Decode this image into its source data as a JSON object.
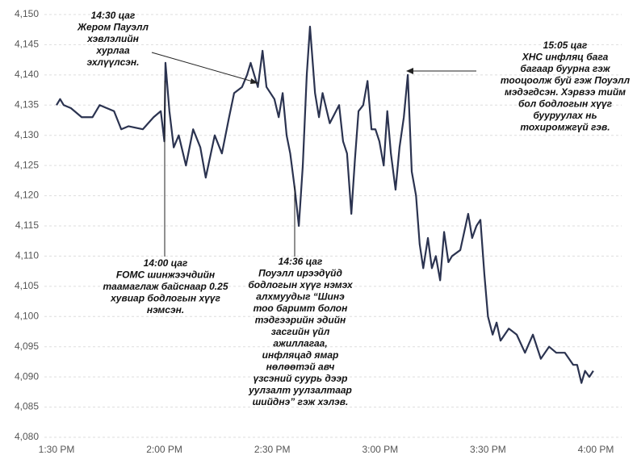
{
  "chart_data": {
    "type": "line",
    "series": [
      {
        "color": "#2b3350",
        "x": [
          0,
          1,
          2,
          4,
          7,
          10,
          12,
          16,
          18,
          20,
          24,
          27,
          29,
          30,
          30.3,
          31.4,
          32.6,
          34,
          36,
          38,
          40,
          41.5,
          44,
          46,
          48,
          49.4,
          51.6,
          53,
          54,
          56,
          57.3,
          58.4,
          59.5,
          60.6,
          61.8,
          62.9,
          64,
          65,
          66.3,
          67.4,
          68.5,
          69.6,
          70.5,
          71.9,
          73,
          74,
          76,
          78.6,
          79.7,
          80.8,
          82,
          83,
          84,
          85.3,
          86.5,
          87.6,
          88.7,
          89.8,
          91,
          92,
          93,
          94.3,
          95.4,
          96.6,
          97.7,
          98.8,
          100,
          101,
          102,
          103.3,
          104.4,
          105.5,
          106.7,
          107.8,
          109,
          110,
          112.3,
          113.4,
          114.5,
          115.6,
          116.8,
          117.9,
          119,
          120,
          121.3,
          122.4,
          123.5,
          125.8,
          128,
          130.3,
          132.5,
          134.7,
          137,
          139,
          141.4,
          143.7,
          144.8,
          146,
          147,
          148.2,
          149.3
        ],
        "values": [
          4135,
          4136,
          4135,
          4134.5,
          4133,
          4133,
          4135,
          4134,
          4131,
          4131.5,
          4131,
          4133,
          4134,
          4129,
          4142,
          4134,
          4128,
          4130,
          4125,
          4131,
          4128,
          4123,
          4130,
          4127,
          4133,
          4137,
          4138,
          4140,
          4142,
          4138,
          4144,
          4138,
          4137,
          4136,
          4133,
          4137,
          4130,
          4127,
          4121,
          4115,
          4125,
          4140,
          4148,
          4137,
          4133,
          4137,
          4132,
          4135,
          4129,
          4127,
          4117,
          4126,
          4134,
          4135,
          4139,
          4131,
          4131,
          4129,
          4125,
          4134,
          4127,
          4121,
          4128,
          4133,
          4140,
          4124,
          4120,
          4112,
          4108,
          4113,
          4108,
          4110,
          4106,
          4114,
          4109,
          4110,
          4111,
          4114,
          4117,
          4113,
          4115,
          4116,
          4107,
          4100,
          4097,
          4099,
          4096,
          4098,
          4097,
          4094,
          4097,
          4093,
          4095,
          4094,
          4094,
          4092,
          4092,
          4089,
          4091,
          4090,
          4091
        ]
      }
    ],
    "xlim": [
      0,
      150
    ],
    "xticks": [
      {
        "value": 0,
        "label": "1:30 PM"
      },
      {
        "value": 30,
        "label": "2:00 PM"
      },
      {
        "value": 60,
        "label": "2:30 PM"
      },
      {
        "value": 90,
        "label": "3:00 PM"
      },
      {
        "value": 120,
        "label": "3:30 PM"
      },
      {
        "value": 150,
        "label": "4:00 PM"
      }
    ],
    "ylim": [
      4080,
      4150
    ],
    "yticks": [
      {
        "value": 4080,
        "label": "4,080"
      },
      {
        "value": 4085,
        "label": "4,085"
      },
      {
        "value": 4090,
        "label": "4,090"
      },
      {
        "value": 4095,
        "label": "4,095"
      },
      {
        "value": 4100,
        "label": "4,100"
      },
      {
        "value": 4105,
        "label": "4,105"
      },
      {
        "value": 4110,
        "label": "4,110"
      },
      {
        "value": 4115,
        "label": "4,115"
      },
      {
        "value": 4120,
        "label": "4,120"
      },
      {
        "value": 4125,
        "label": "4,125"
      },
      {
        "value": 4130,
        "label": "4,130"
      },
      {
        "value": 4135,
        "label": "4,135"
      },
      {
        "value": 4140,
        "label": "4,140"
      },
      {
        "value": 4145,
        "label": "4,145"
      },
      {
        "value": 4150,
        "label": "4,150"
      }
    ],
    "grid": true,
    "annotations": [
      {
        "lines": [
          "14:30 цаг",
          "Жером Пауэлл",
          "хэвлэлийн",
          "хурлаа",
          "эхлүүлсэн."
        ]
      },
      {
        "lines": [
          "14:00 цаг",
          "FOMC шинжээчдийн",
          "таамаглаж байснаар 0.25",
          "хувиар бодлогын хүүг",
          "нэмсэн."
        ]
      },
      {
        "lines": [
          "14:36 цаг",
          "Поуэлл ирээдүйд",
          "бодлогын хүүг нэмэх",
          "алхмуудыг “Шинэ",
          "тоо баримт болон",
          "тэдгээрийн эдийн",
          "засгийн үйл",
          "ажиллагаа,",
          "инфляцад ямар",
          "нөлөөтэй авч",
          "үзсэний суурь дээр",
          "уулзалт уулзалтаар",
          "шийднэ” гэж хэлэв."
        ]
      },
      {
        "lines": [
          "15:05 цаг",
          "ХНС инфляц бага",
          "багаар буурна гэж",
          "тооцоолж буй гэж Поуэлл",
          "мэдэгдсэн. Хэрвээ тийм",
          "бол бодлогын хүүг",
          "бууруулах нь",
          "тохиромжгүй гэв."
        ]
      }
    ]
  }
}
